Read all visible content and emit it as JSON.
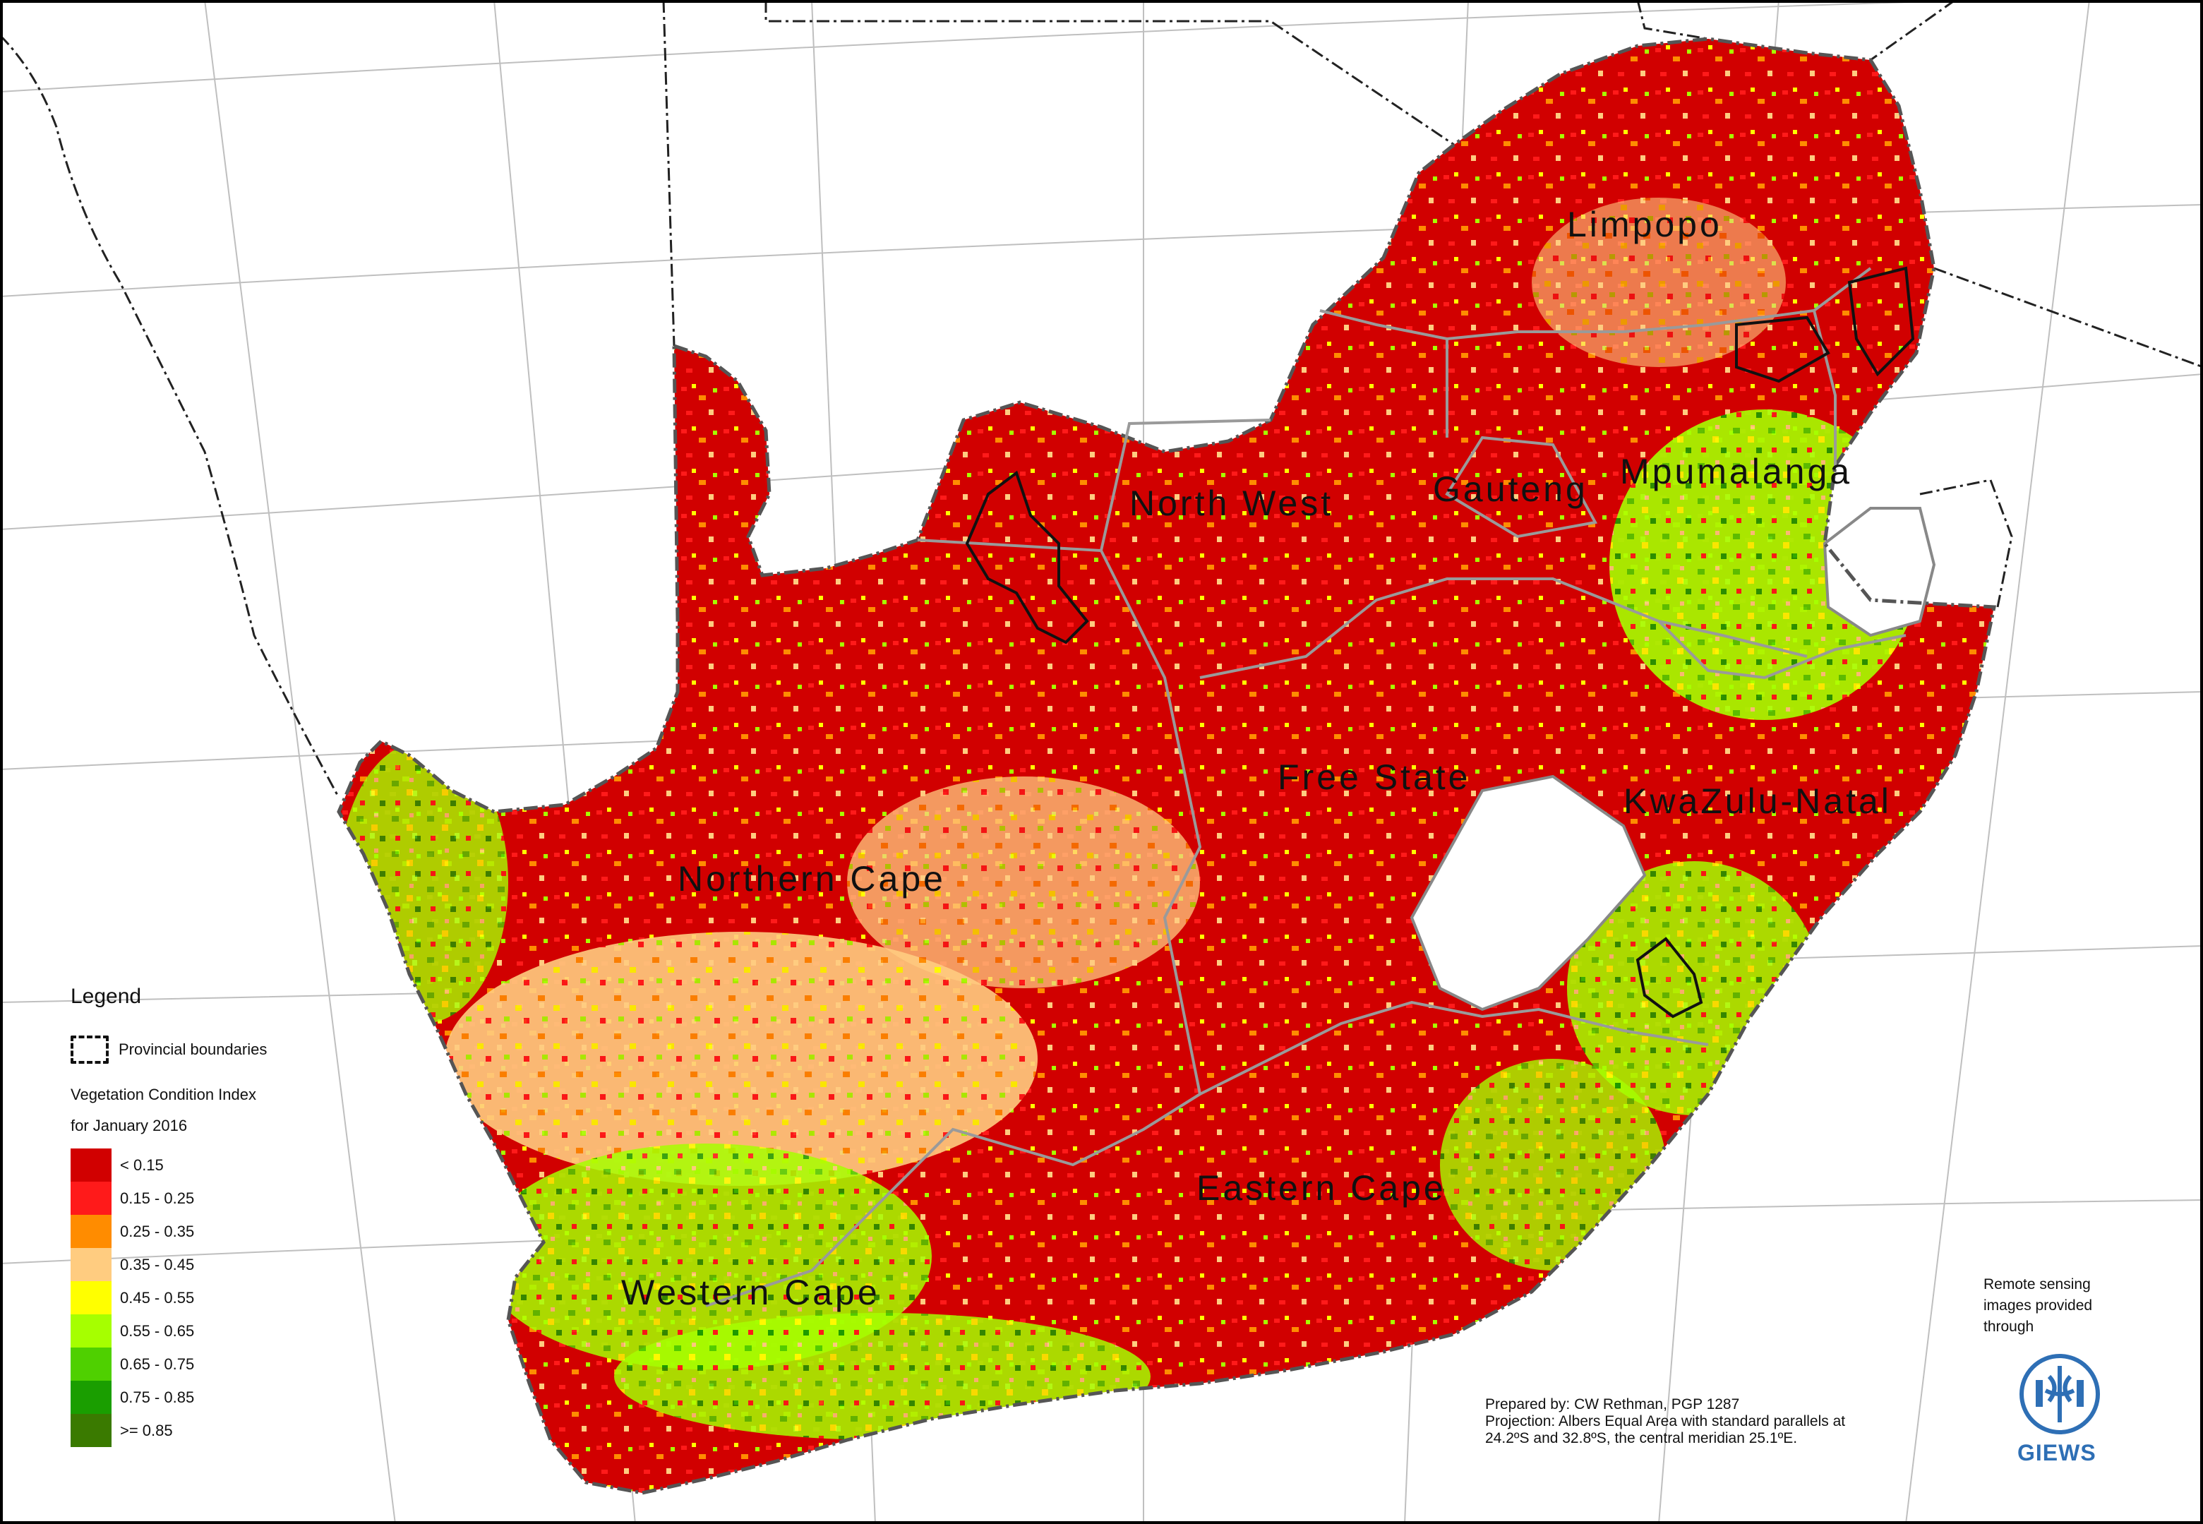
{
  "regions": [
    {
      "name": "Limpopo"
    },
    {
      "name": "North West"
    },
    {
      "name": "Gauteng"
    },
    {
      "name": "Mpumalanga"
    },
    {
      "name": "Free State"
    },
    {
      "name": "KwaZulu-Natal"
    },
    {
      "name": "Northern Cape"
    },
    {
      "name": "Eastern Cape"
    },
    {
      "name": "Western Cape"
    }
  ],
  "legend": {
    "title": "Legend",
    "boundary_label": "Provincial boundaries",
    "index_title": "Vegetation Condition Index",
    "period": "for January 2016",
    "classes": [
      {
        "label": "< 0.15",
        "color": "#d10000"
      },
      {
        "label": "0.15 - 0.25",
        "color": "#ff1a1a"
      },
      {
        "label": "0.25 - 0.35",
        "color": "#ff8c00"
      },
      {
        "label": "0.35 - 0.45",
        "color": "#ffcc80"
      },
      {
        "label": "0.45 - 0.55",
        "color": "#ffff00"
      },
      {
        "label": "0.55 - 0.65",
        "color": "#a6ff00"
      },
      {
        "label": "0.65 - 0.75",
        "color": "#4fd000"
      },
      {
        "label": "0.75 - 0.85",
        "color": "#1a9e00"
      },
      {
        "label": ">= 0.85",
        "color": "#3a7a00"
      }
    ]
  },
  "credits": {
    "prepared_by": "Prepared by: CW Rethman, PGP 1287",
    "projection_1": "Projection: Albers Equal Area with standard parallels at",
    "projection_2": "24.2ºS  and 32.8ºS, the central meridian 25.1ºE."
  },
  "giews": {
    "rs_1": "Remote sensing",
    "rs_2": "images provided",
    "rs_3": "through",
    "brand": "GIEWS",
    "brand_color": "#2e6fb5"
  }
}
